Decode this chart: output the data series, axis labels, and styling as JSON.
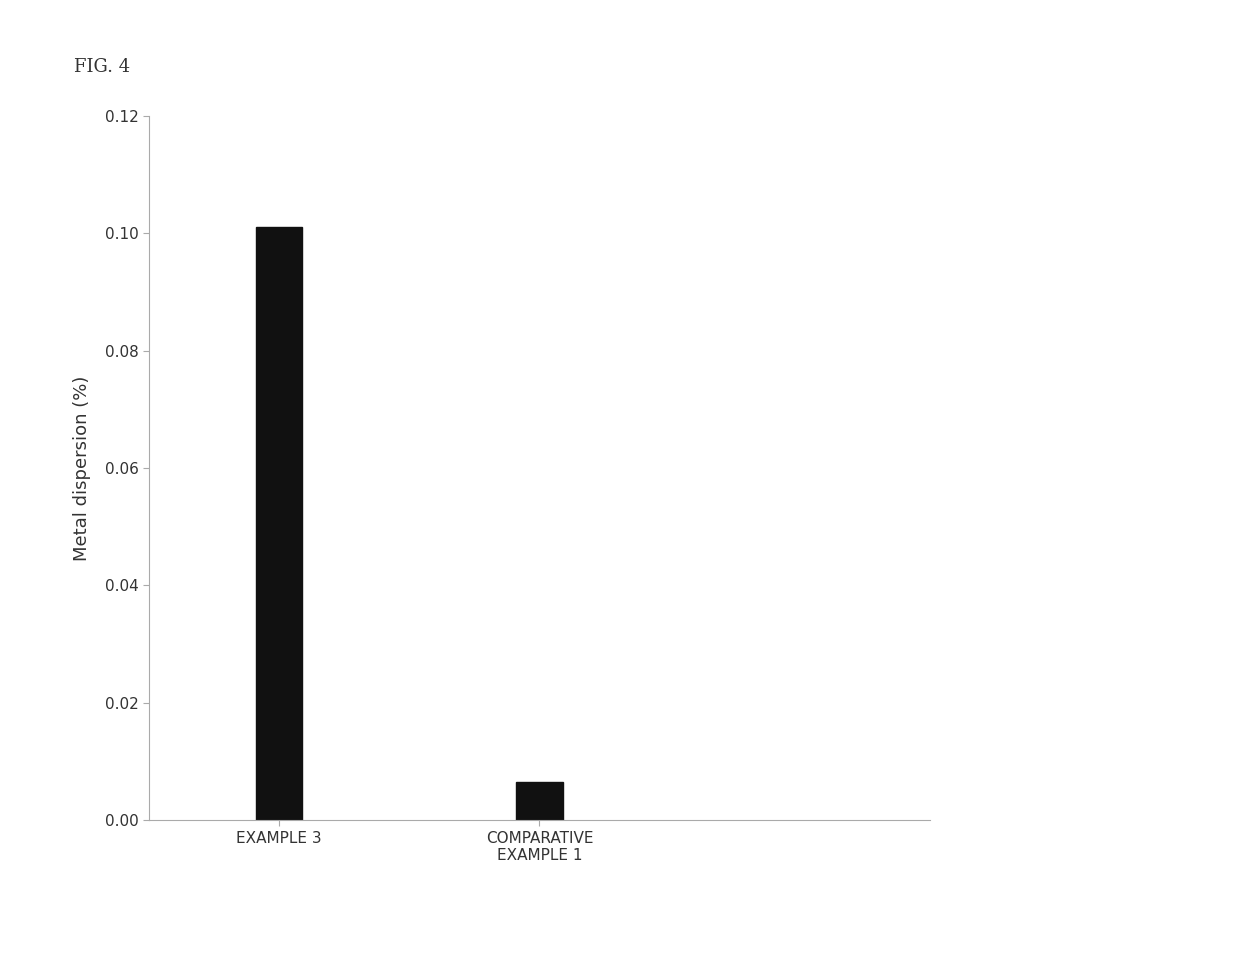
{
  "categories": [
    "EXAMPLE 3",
    "COMPARATIVE\nEXAMPLE 1"
  ],
  "values": [
    0.101,
    0.0065
  ],
  "bar_color": "#111111",
  "bar_width": 0.18,
  "ylabel": "Metal dispersion (%)",
  "ylim": [
    0,
    0.12
  ],
  "yticks": [
    0.0,
    0.02,
    0.04,
    0.06,
    0.08,
    0.1,
    0.12
  ],
  "x_positions": [
    1,
    2
  ],
  "xlim": [
    0.5,
    3.5
  ],
  "title": "FIG. 4",
  "background_color": "#ffffff",
  "ylabel_fontsize": 13,
  "tick_fontsize": 11,
  "xlabel_fontsize": 11,
  "title_fontsize": 13
}
